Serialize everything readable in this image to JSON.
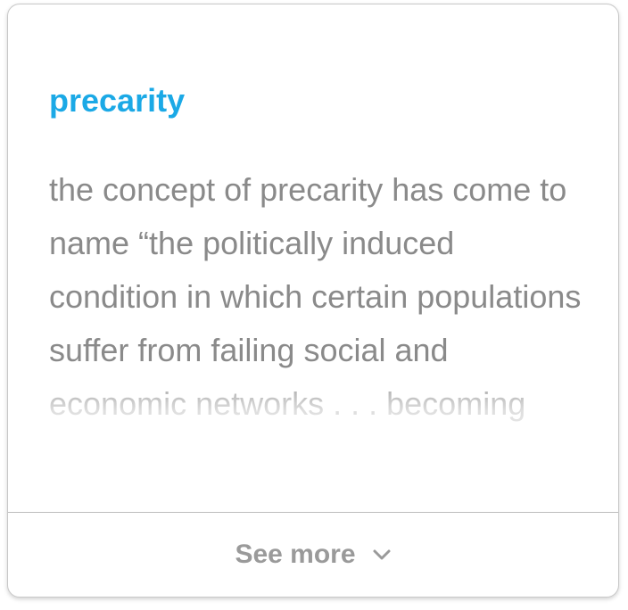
{
  "card": {
    "title": "precarity",
    "excerpt": "the concept of precarity has come to name “the politically induced condition in which certain populations suffer from failing social and economic networks . . . becoming",
    "see_more_label": "See more",
    "see_more_icon": "chevron-down-icon"
  },
  "colors": {
    "title": "#1ba9e6",
    "body_text": "#8a8a8a",
    "button_text": "#9a9a9a"
  }
}
